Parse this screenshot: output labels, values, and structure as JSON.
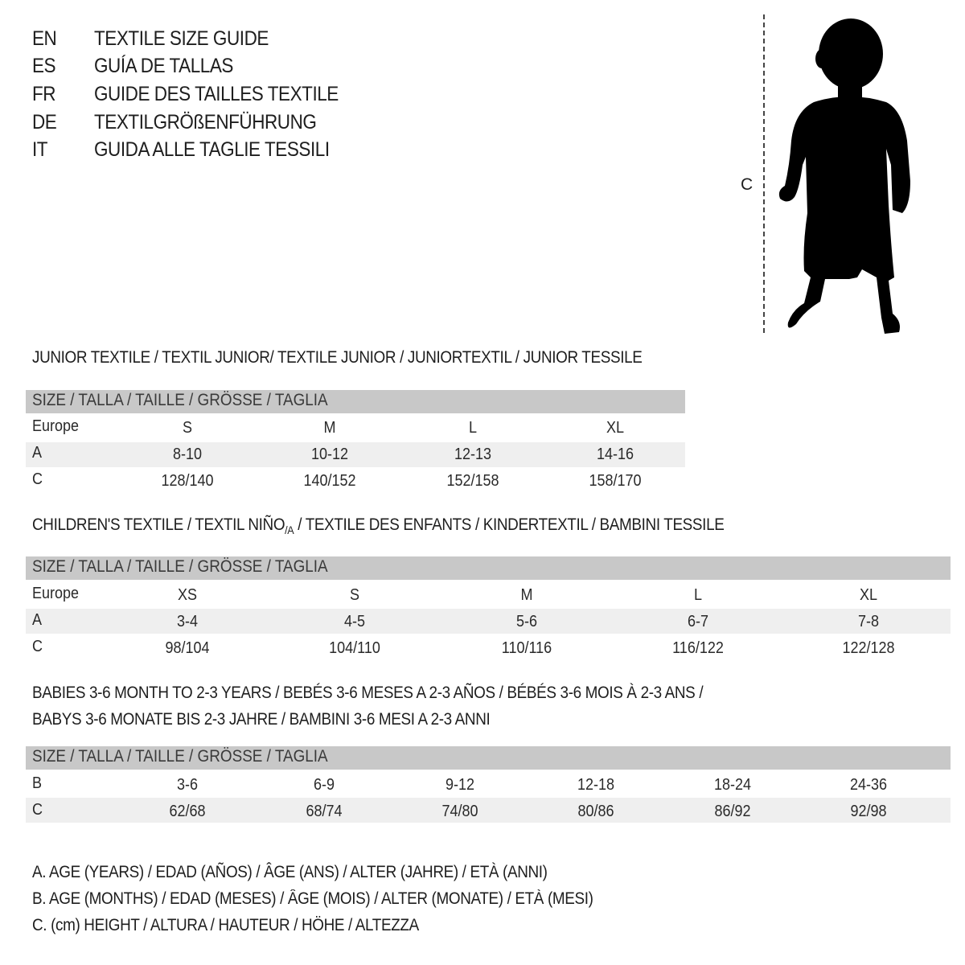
{
  "titles": [
    {
      "code": "EN",
      "text": "TEXTILE SIZE GUIDE"
    },
    {
      "code": "ES",
      "text": "GUÍA DE TALLAS"
    },
    {
      "code": "FR",
      "text": "GUIDE DES TAILLES TEXTILE"
    },
    {
      "code": "DE",
      "text": "TEXTILGRÖßENFÜHRUNG"
    },
    {
      "code": "IT",
      "text": "GUIDA ALLE TAGLIE TESSILI"
    }
  ],
  "figure": {
    "measure_label": "C",
    "icon": "baby-silhouette-icon"
  },
  "size_header": "SIZE / TALLA / TAILLE / GRÖSSE / TAGLIA",
  "junior": {
    "heading": "JUNIOR TEXTILE / TEXTIL JUNIOR/ TEXTILE JUNIOR / JUNIORTEXTIL / JUNIOR TESSILE",
    "rows": [
      {
        "label": "Europe",
        "values": [
          "S",
          "M",
          "L",
          "XL"
        ]
      },
      {
        "label": "A",
        "values": [
          "8-10",
          "10-12",
          "12-13",
          "14-16"
        ]
      },
      {
        "label": "C",
        "values": [
          "128/140",
          "140/152",
          "152/158",
          "158/170"
        ]
      }
    ]
  },
  "children": {
    "heading": "CHILDREN'S TEXTILE / TEXTIL NIÑO",
    "heading_sub": "/A",
    "heading_rest": " / TEXTILE DES ENFANTS / KINDERTEXTIL / BAMBINI TESSILE",
    "rows": [
      {
        "label": "Europe",
        "values": [
          "XS",
          "S",
          "M",
          "L",
          "XL"
        ]
      },
      {
        "label": "A",
        "values": [
          "3-4",
          "4-5",
          "5-6",
          "6-7",
          "7-8"
        ]
      },
      {
        "label": "C",
        "values": [
          "98/104",
          "104/110",
          "110/116",
          "116/122",
          "122/128"
        ]
      }
    ]
  },
  "babies": {
    "heading_line1": "BABIES 3-6 MONTH TO 2-3 YEARS / BEBÉS 3-6 MESES A 2-3 AÑOS / BÉBÉS 3-6 MOIS À 2-3 ANS /",
    "heading_line2": "BABYS 3-6 MONATE BIS 2-3 JAHRE / BAMBINI 3-6 MESI A 2-3 ANNI",
    "rows": [
      {
        "label": "B",
        "values": [
          "3-6",
          "6-9",
          "9-12",
          "12-18",
          "18-24",
          "24-36"
        ]
      },
      {
        "label": "C",
        "values": [
          "62/68",
          "68/74",
          "74/80",
          "80/86",
          "86/92",
          "92/98"
        ]
      }
    ]
  },
  "legend": [
    "A. AGE (YEARS) / EDAD (AÑOS) / ÂGE (ANS) / ALTER (JAHRE) / ETÀ (ANNI)",
    "B. AGE (MONTHS) / EDAD (MESES) / ÂGE (MOIS) / ALTER (MONATE) / ETÀ (MESI)",
    "C. (cm) HEIGHT / ALTURA / HAUTEUR / HÖHE / ALTEZZA"
  ],
  "colors": {
    "header_band": "#c8c8c8",
    "row_shade": "#efefef",
    "text": "#1e1e1e"
  }
}
